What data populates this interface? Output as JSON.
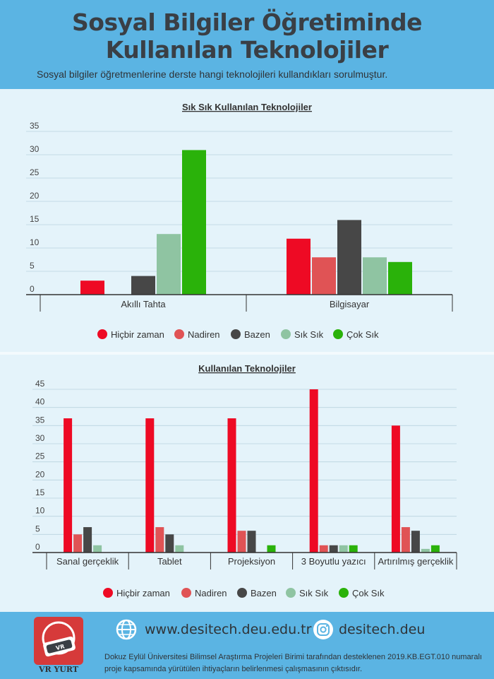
{
  "header": {
    "title_line1": "Sosyal Bilgiler Öğretiminde",
    "title_line2": "Kullanılan Teknolojiler",
    "subtitle": "Sosyal bilgiler öğretmenlerine derste hangi teknolojileri kullandıkları sorulmuştur."
  },
  "colors": {
    "header_bg": "#5bb4e3",
    "panel_bg": "#e4f3fa",
    "series": [
      "#ee0a24",
      "#e05355",
      "#474747",
      "#8fc4a2",
      "#2ab20a"
    ]
  },
  "chart_data": [
    {
      "type": "bar",
      "title": "Sık Sık Kullanılan Teknolojiler",
      "categories": [
        "Akıllı Tahta",
        "Bilgisayar"
      ],
      "ylim": [
        0,
        35
      ],
      "yticks": [
        0,
        5,
        10,
        15,
        20,
        25,
        30,
        35
      ],
      "grid": true,
      "legend_position": "bottom",
      "series": [
        {
          "name": "Hiçbir zaman",
          "values": [
            3,
            12
          ]
        },
        {
          "name": "Nadiren",
          "values": [
            0,
            8
          ]
        },
        {
          "name": "Bazen",
          "values": [
            4,
            16
          ]
        },
        {
          "name": "Sık Sık",
          "values": [
            13,
            8
          ]
        },
        {
          "name": "Çok Sık",
          "values": [
            31,
            7
          ]
        }
      ]
    },
    {
      "type": "bar",
      "title": "Kullanılan Teknolojiler",
      "categories": [
        "Sanal gerçeklik",
        "Tablet",
        "Projeksiyon",
        "3 Boyutlu yazıcı",
        "Artırılmış gerçeklik"
      ],
      "ylim": [
        0,
        45
      ],
      "yticks": [
        0,
        5,
        10,
        15,
        20,
        25,
        30,
        35,
        40,
        45
      ],
      "grid": true,
      "legend_position": "bottom",
      "series": [
        {
          "name": "Hiçbir zaman",
          "values": [
            37,
            37,
            37,
            45,
            35
          ]
        },
        {
          "name": "Nadiren",
          "values": [
            5,
            7,
            6,
            2,
            7
          ]
        },
        {
          "name": "Bazen",
          "values": [
            7,
            5,
            6,
            2,
            6
          ]
        },
        {
          "name": "Sık Sık",
          "values": [
            2,
            2,
            0,
            2,
            1
          ]
        },
        {
          "name": "Çok Sık",
          "values": [
            0,
            0,
            2,
            2,
            2
          ]
        }
      ]
    }
  ],
  "footer": {
    "logo_text": "VR YURT",
    "logo_mark": "VR",
    "website": "www.desitech.deu.edu.tr",
    "instagram": "desitech.deu",
    "note": "Dokuz Eylül Üniversitesi Bilimsel Araştırma Projeleri Birimi tarafından desteklenen 2019.KB.EGT.010 numaralı proje kapsamında yürütülen ihtiyaçların belirlenmesi çalışmasının çıktısıdır.",
    "globe_icon": "globe-icon",
    "instagram_icon": "instagram-icon"
  }
}
